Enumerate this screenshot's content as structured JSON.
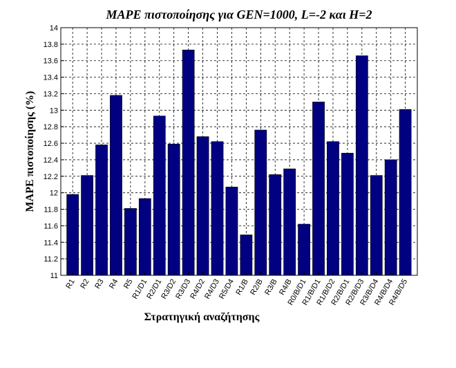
{
  "chart_data": {
    "type": "bar",
    "title": "MAPE πιστοποίησης για GEN=1000, L=-2 και H=2",
    "xlabel": "Στρατηγική αναζήτησης",
    "ylabel": "MAPE πιστοποίησης (%)",
    "ylim": [
      11,
      14
    ],
    "yticks": [
      "11",
      "11.2",
      "11.4",
      "11.6",
      "11.8",
      "12",
      "12.2",
      "12.4",
      "12.6",
      "12.8",
      "13",
      "13.2",
      "13.4",
      "13.6",
      "13.8",
      "14"
    ],
    "grid": true,
    "bar_color": "#000080",
    "categories": [
      "R1",
      "R2",
      "R3",
      "R4",
      "R5",
      "R1/D1",
      "R2/D1",
      "R3/D2",
      "R3/D3",
      "R4/D2",
      "R4/D3",
      "R5/D4",
      "R1/B",
      "R2/B",
      "R3/B",
      "R4/B",
      "R0/B/D1",
      "R1/B/D1",
      "R1/B/D2",
      "R2/B/D1",
      "R2/B/D3",
      "R3/B/D4",
      "R4/B/D4",
      "R4/B/D5"
    ],
    "values": [
      11.98,
      12.21,
      12.58,
      13.18,
      11.81,
      11.93,
      12.93,
      12.59,
      13.73,
      12.68,
      12.62,
      12.07,
      11.49,
      12.76,
      12.22,
      12.29,
      11.62,
      13.1,
      12.62,
      12.48,
      13.66,
      12.21,
      12.4,
      13.01
    ]
  }
}
